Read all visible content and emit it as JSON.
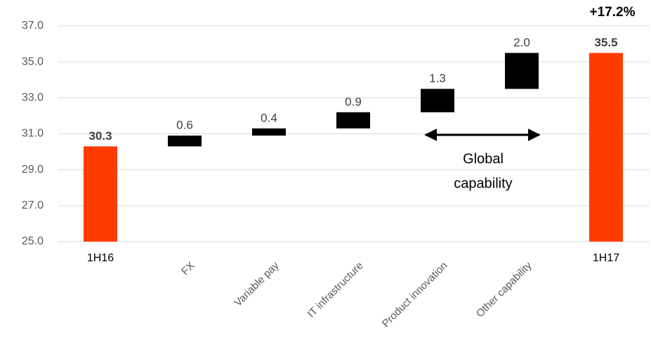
{
  "chart_data": {
    "type": "waterfall",
    "categories": [
      "1H16",
      "FX",
      "Variable pay",
      "IT infrastructure",
      "Product innovation",
      "Other capability",
      "1H17"
    ],
    "values": [
      30.3,
      0.6,
      0.4,
      0.9,
      1.3,
      2.0,
      35.5
    ],
    "value_labels": [
      "30.3",
      "0.6",
      "0.4",
      "0.9",
      "1.3",
      "2.0",
      "35.5"
    ],
    "is_total": [
      true,
      false,
      false,
      false,
      false,
      false,
      true
    ],
    "total_color": "#ff3c00",
    "delta_color": "#000000",
    "ylim": [
      25,
      37
    ],
    "yticks": [
      {
        "value": 25,
        "label": "25.0"
      },
      {
        "value": 27,
        "label": "27.0"
      },
      {
        "value": 29,
        "label": "29.0"
      },
      {
        "value": 31,
        "label": "31.0"
      },
      {
        "value": 33,
        "label": "33.0"
      },
      {
        "value": 35,
        "label": "35.0"
      },
      {
        "value": 37,
        "label": "37.0"
      }
    ],
    "grid": true,
    "annotations": {
      "growth": "+17.2%",
      "bracket": [
        "Global",
        "capability"
      ]
    }
  }
}
